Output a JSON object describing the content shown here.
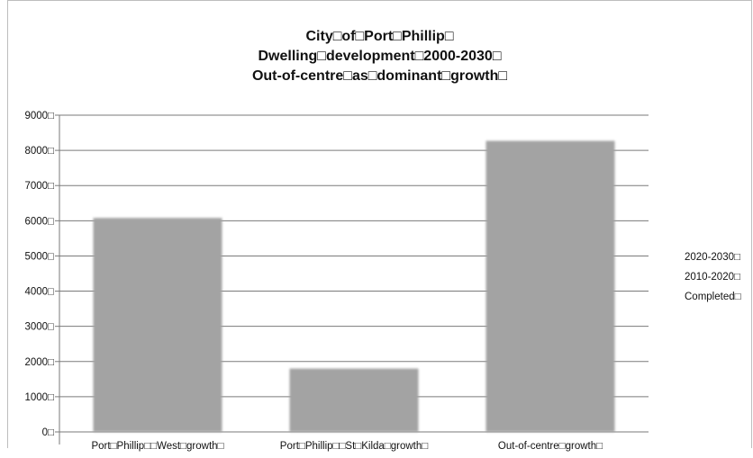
{
  "chart_data": {
    "type": "bar",
    "title": [
      "City□of□Port□Phillip□",
      "Dwelling□development□2000-2030□",
      "Out-of-centre□as□dominant□growth□"
    ],
    "categories": [
      "Port□Phillip□□West□growth□",
      "Port□Phillip□□St□Kilda□growth□",
      "Out-of-centre□growth□"
    ],
    "values": [
      6080,
      1800,
      8270
    ],
    "ylim": [
      0,
      9000
    ],
    "yticks": [
      "0□",
      "1000□",
      "2000□",
      "3000□",
      "4000□",
      "5000□",
      "6000□",
      "7000□",
      "8000□",
      "9000□"
    ],
    "legend": [
      "2020-2030□",
      "2010-2020□",
      "Completed□"
    ],
    "legend_position": "right",
    "grid": true,
    "bar_color": "#a3a3a3",
    "grid_color": "#7a7a7a"
  }
}
